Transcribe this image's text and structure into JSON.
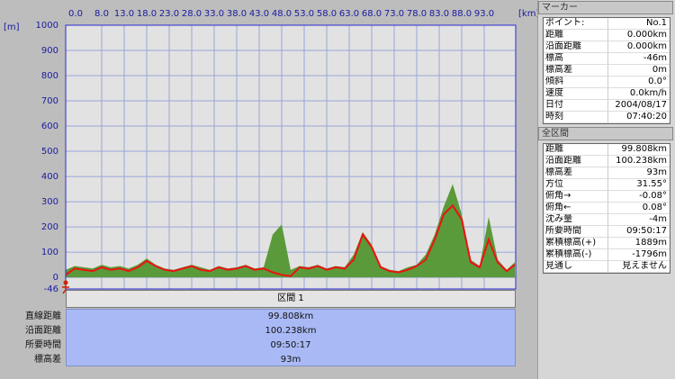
{
  "chart_data": {
    "type": "area-line",
    "ylabel": "[m]",
    "xlabel": "[km]",
    "xlim": [
      0,
      100
    ],
    "ylim": [
      -46,
      1000
    ],
    "xticks": [
      {
        "value": 0,
        "label": "0.0"
      },
      {
        "value": 8,
        "label": "8.0"
      },
      {
        "value": 13,
        "label": "13.0"
      },
      {
        "value": 18,
        "label": "18.0"
      },
      {
        "value": 23,
        "label": "23.0"
      },
      {
        "value": 28,
        "label": "28.0"
      },
      {
        "value": 33,
        "label": "33.0"
      },
      {
        "value": 38,
        "label": "38.0"
      },
      {
        "value": 43,
        "label": "43.0"
      },
      {
        "value": 48,
        "label": "48.0"
      },
      {
        "value": 53,
        "label": "53.0"
      },
      {
        "value": 58,
        "label": "58.0"
      },
      {
        "value": 63,
        "label": "63.0"
      },
      {
        "value": 68,
        "label": "68.0"
      },
      {
        "value": 73,
        "label": "73.0"
      },
      {
        "value": 78,
        "label": "78.0"
      },
      {
        "value": 83,
        "label": "83.0"
      },
      {
        "value": 88,
        "label": "88.0"
      },
      {
        "value": 93,
        "label": "93.0"
      }
    ],
    "yticks": [
      -46,
      0,
      100,
      200,
      300,
      400,
      500,
      600,
      700,
      800,
      900,
      1000
    ],
    "grid": true,
    "x": [
      0,
      2,
      4,
      6,
      8,
      10,
      12,
      14,
      16,
      18,
      20,
      22,
      24,
      26,
      28,
      30,
      32,
      34,
      36,
      38,
      40,
      42,
      44,
      46,
      48,
      50,
      52,
      54,
      56,
      58,
      60,
      62,
      64,
      66,
      68,
      70,
      72,
      74,
      76,
      78,
      80,
      82,
      84,
      86,
      88,
      90,
      92,
      94,
      96,
      98,
      99.8
    ],
    "series": [
      {
        "kind": "area",
        "color": "#5a9a3a",
        "values": [
          30,
          45,
          40,
          35,
          50,
          40,
          45,
          35,
          50,
          75,
          50,
          35,
          30,
          40,
          50,
          40,
          30,
          45,
          35,
          40,
          50,
          35,
          40,
          170,
          210,
          30,
          45,
          40,
          50,
          35,
          45,
          40,
          90,
          180,
          130,
          45,
          30,
          25,
          40,
          50,
          90,
          170,
          280,
          370,
          250,
          70,
          45,
          240,
          70,
          30,
          60
        ]
      },
      {
        "kind": "line",
        "color": "#ee1111",
        "values": [
          10,
          35,
          30,
          25,
          40,
          30,
          35,
          25,
          40,
          65,
          45,
          30,
          25,
          35,
          45,
          30,
          25,
          40,
          30,
          35,
          45,
          30,
          35,
          20,
          10,
          5,
          40,
          35,
          45,
          30,
          40,
          35,
          70,
          170,
          120,
          40,
          25,
          20,
          30,
          45,
          70,
          150,
          250,
          285,
          230,
          60,
          40,
          150,
          60,
          25,
          50
        ]
      }
    ]
  },
  "section": {
    "title": "区間 1",
    "rows": [
      [
        "直線距離",
        "99.808km"
      ],
      [
        "沿面距離",
        "100.238km"
      ],
      [
        "所要時間",
        "09:50:17"
      ],
      [
        "標高差",
        "93m"
      ]
    ]
  },
  "marker_panel": {
    "title": "マーカー",
    "rows": [
      [
        "ポイント:",
        "No.1"
      ],
      [
        "距離",
        "0.000km"
      ],
      [
        "沿面距離",
        "0.000km"
      ],
      [
        "標高",
        "-46m"
      ],
      [
        "標高差",
        "0m"
      ],
      [
        "傾斜",
        "0.0°"
      ],
      [
        "速度",
        "0.0km/h"
      ],
      [
        "日付",
        "2004/08/17"
      ],
      [
        "時刻",
        "07:40:20"
      ]
    ]
  },
  "total_panel": {
    "title": "全区間",
    "rows": [
      [
        "距離",
        "99.808km"
      ],
      [
        "沿面距離",
        "100.238km"
      ],
      [
        "標高差",
        "93m"
      ],
      [
        "方位",
        "31.55°"
      ],
      [
        "俯角→",
        "-0.08°"
      ],
      [
        "俯角←",
        "0.08°"
      ],
      [
        "沈み量",
        "-4m"
      ],
      [
        "所要時間",
        "09:50:17"
      ],
      [
        "累積標高(+)",
        "1889m"
      ],
      [
        "累積標高(-)",
        "-1796m"
      ],
      [
        "見通し",
        "見えません"
      ]
    ]
  }
}
